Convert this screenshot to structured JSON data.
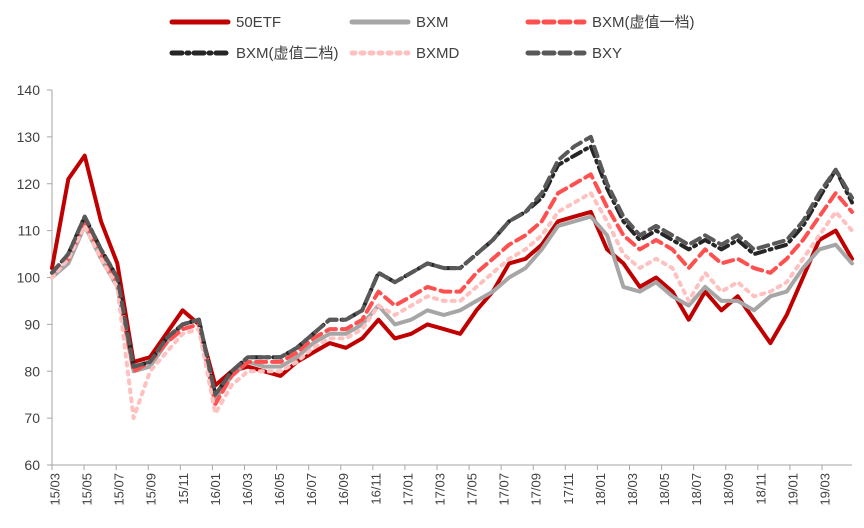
{
  "chart_data": {
    "type": "line",
    "title": "",
    "xlabel": "",
    "ylabel": "",
    "ylim": [
      60,
      140
    ],
    "y_ticks": [
      60,
      70,
      80,
      90,
      100,
      110,
      120,
      130,
      140
    ],
    "x_tick_labels": [
      "15/03",
      "15/05",
      "15/07",
      "15/09",
      "15/11",
      "16/01",
      "16/03",
      "16/05",
      "16/07",
      "16/09",
      "16/11",
      "17/01",
      "17/03",
      "17/05",
      "17/07",
      "17/09",
      "17/11",
      "18/01",
      "18/03",
      "18/05",
      "18/07",
      "18/09",
      "18/11",
      "19/01",
      "19/03"
    ],
    "x": [
      "15/03",
      "15/04",
      "15/05",
      "15/06",
      "15/07",
      "15/08",
      "15/09",
      "15/10",
      "15/11",
      "15/12",
      "16/01",
      "16/02",
      "16/03",
      "16/04",
      "16/05",
      "16/06",
      "16/07",
      "16/08",
      "16/09",
      "16/10",
      "16/11",
      "16/12",
      "17/01",
      "17/02",
      "17/03",
      "17/04",
      "17/05",
      "17/06",
      "17/07",
      "17/08",
      "17/09",
      "17/10",
      "17/11",
      "17/12",
      "18/01",
      "18/02",
      "18/03",
      "18/04",
      "18/05",
      "18/06",
      "18/07",
      "18/08",
      "18/09",
      "18/10",
      "18/11",
      "18/12",
      "19/01",
      "19/02",
      "19/03",
      "19/04"
    ],
    "legend_position": "top",
    "grid": false,
    "series": [
      {
        "name": "50ETF",
        "color": "#c00000",
        "style": "solid",
        "width": 4,
        "values": [
          102,
          121,
          126,
          112,
          103,
          82,
          83,
          88,
          93,
          90,
          77,
          80,
          81,
          80,
          79,
          82,
          84,
          86,
          85,
          87,
          91,
          87,
          88,
          90,
          89,
          88,
          93,
          97,
          103,
          104,
          107,
          112,
          113,
          114,
          106,
          103,
          98,
          100,
          97,
          91,
          97,
          93,
          96,
          91,
          86,
          92,
          100,
          108,
          110,
          104
        ]
      },
      {
        "name": "BXM",
        "color": "#a6a6a6",
        "style": "solid",
        "width": 4,
        "values": [
          100,
          103,
          111,
          104,
          98,
          80,
          81,
          86,
          90,
          91,
          74,
          79,
          82,
          81,
          81,
          83,
          86,
          88,
          88,
          90,
          94,
          90,
          91,
          93,
          92,
          93,
          95,
          97,
          100,
          102,
          106,
          111,
          112,
          113,
          109,
          98,
          97,
          99,
          96,
          94,
          98,
          95,
          95,
          93,
          96,
          97,
          102,
          106,
          107,
          103
        ]
      },
      {
        "name": "BXM(虚值一档)",
        "color": "#ff5050",
        "style": "dashed",
        "width": 4,
        "values": [
          101,
          104,
          112,
          105,
          99,
          80,
          82,
          86,
          89,
          90,
          73,
          79,
          82,
          82,
          82,
          84,
          87,
          89,
          89,
          91,
          97,
          94,
          96,
          98,
          97,
          97,
          101,
          104,
          107,
          109,
          112,
          118,
          120,
          122,
          115,
          109,
          106,
          108,
          106,
          102,
          106,
          103,
          104,
          102,
          101,
          104,
          108,
          113,
          118,
          114
        ]
      },
      {
        "name": "BXM(虚值二档)",
        "color": "#262626",
        "style": "dash-dot",
        "width": 4,
        "values": [
          101,
          105,
          113,
          106,
          100,
          81,
          82,
          87,
          90,
          91,
          75,
          80,
          83,
          83,
          83,
          85,
          88,
          91,
          91,
          93,
          101,
          99,
          101,
          103,
          102,
          102,
          105,
          108,
          112,
          114,
          117,
          124,
          126,
          128,
          119,
          112,
          108,
          110,
          108,
          106,
          108,
          106,
          108,
          105,
          106,
          107,
          111,
          117,
          123,
          116
        ]
      },
      {
        "name": "BXMD",
        "color": "#ffc0c0",
        "style": "dotted",
        "width": 4,
        "values": [
          100,
          104,
          111,
          104,
          98,
          70,
          80,
          84,
          88,
          89,
          71,
          77,
          80,
          80,
          80,
          82,
          85,
          87,
          87,
          89,
          94,
          92,
          94,
          96,
          95,
          95,
          98,
          101,
          104,
          106,
          109,
          114,
          116,
          118,
          112,
          105,
          102,
          104,
          102,
          95,
          101,
          97,
          99,
          96,
          97,
          99,
          104,
          109,
          114,
          110
        ]
      },
      {
        "name": "BXY",
        "color": "#595959",
        "style": "dashed",
        "width": 4,
        "values": [
          101,
          105,
          113,
          106,
          100,
          81,
          82,
          87,
          90,
          91,
          75,
          80,
          83,
          83,
          83,
          85,
          88,
          91,
          91,
          93,
          101,
          99,
          101,
          103,
          102,
          102,
          105,
          108,
          112,
          114,
          118,
          125,
          128,
          130,
          120,
          113,
          109,
          111,
          109,
          107,
          109,
          107,
          109,
          106,
          107,
          108,
          112,
          118,
          123,
          117
        ]
      }
    ]
  }
}
